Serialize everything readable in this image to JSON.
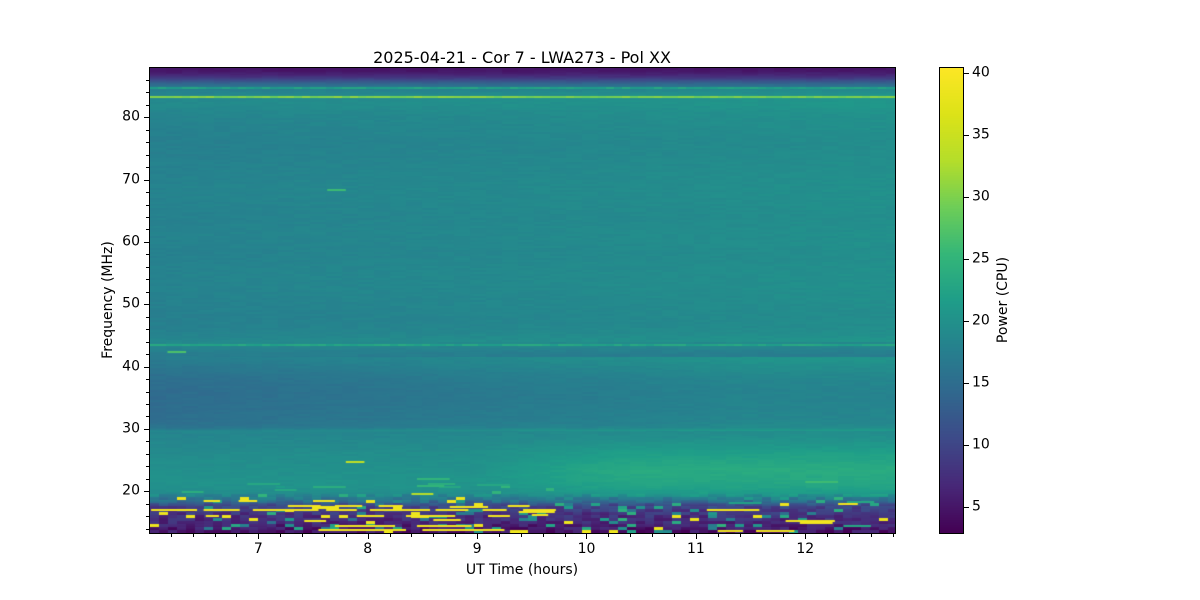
{
  "figure_title": "2025-04-21 - Cor 7 - LWA273 - Pol XX",
  "title_parts": {
    "date": "2025-04-21",
    "instrument": "Cor 7",
    "station": "LWA273",
    "polarization": "Pol XX"
  },
  "chart_data": {
    "type": "heatmap",
    "title": "2025-04-21 - Cor 7 - LWA273 - Pol XX",
    "xlabel": "UT Time (hours)",
    "ylabel": "Frequency (MHz)",
    "colorbar_label": "Power (CPU)",
    "colormap": "viridis",
    "grid": false,
    "x_range": [
      6.01,
      12.82
    ],
    "y_range": [
      13.3,
      87.9
    ],
    "color_range": [
      2.9,
      40.4
    ],
    "x_ticks": [
      7,
      8,
      9,
      10,
      11,
      12
    ],
    "x_minor_step": 0.2,
    "y_ticks": [
      20,
      30,
      40,
      50,
      60,
      70,
      80
    ],
    "y_minor_step": 2,
    "colorbar_ticks": [
      5,
      10,
      15,
      20,
      25,
      30,
      35,
      40
    ],
    "colormap_stops": [
      [
        0.0,
        "#440154"
      ],
      [
        0.1,
        "#482878"
      ],
      [
        0.2,
        "#3e4a89"
      ],
      [
        0.3,
        "#31688e"
      ],
      [
        0.4,
        "#26828e"
      ],
      [
        0.5,
        "#1f9e89"
      ],
      [
        0.6,
        "#35b779"
      ],
      [
        0.7,
        "#6ece58"
      ],
      [
        0.8,
        "#b5de2b"
      ],
      [
        0.9,
        "#dde318"
      ],
      [
        1.0,
        "#fde725"
      ]
    ],
    "background_profile": [
      [
        13.3,
        4.8
      ],
      [
        13.9,
        5.2
      ],
      [
        14.4,
        6.2
      ],
      [
        15.0,
        7.0
      ],
      [
        15.6,
        7.4
      ],
      [
        16.2,
        8.0
      ],
      [
        16.8,
        8.9
      ],
      [
        17.4,
        9.8
      ],
      [
        17.8,
        11.0
      ],
      [
        18.2,
        14.0
      ],
      [
        18.6,
        16.5
      ],
      [
        19.2,
        18.0
      ],
      [
        19.7,
        19.2
      ],
      [
        20.5,
        19.8
      ],
      [
        21.5,
        20.0
      ],
      [
        22.5,
        19.8
      ],
      [
        23.5,
        19.6
      ],
      [
        24.5,
        19.4
      ],
      [
        25.5,
        19.3
      ],
      [
        26.5,
        19.0
      ],
      [
        27.5,
        18.7
      ],
      [
        28.5,
        18.4
      ],
      [
        29.2,
        18.2
      ],
      [
        29.6,
        18.4
      ],
      [
        30.2,
        15.8
      ],
      [
        31,
        15.2
      ],
      [
        32,
        15.0
      ],
      [
        33,
        14.9
      ],
      [
        34,
        14.8
      ],
      [
        35,
        14.7
      ],
      [
        36,
        14.7
      ],
      [
        37,
        14.9
      ],
      [
        38,
        15.1
      ],
      [
        39,
        15.6
      ],
      [
        40,
        16.2
      ],
      [
        41,
        16.8
      ],
      [
        42,
        17.3
      ],
      [
        43,
        18.2
      ],
      [
        43.8,
        18.8
      ],
      [
        44.6,
        18.3
      ],
      [
        45.5,
        17.8
      ],
      [
        46.5,
        17.6
      ],
      [
        48,
        17.5
      ],
      [
        50,
        17.7
      ],
      [
        52,
        17.9
      ],
      [
        54,
        18.0
      ],
      [
        56,
        17.9
      ],
      [
        58,
        17.7
      ],
      [
        60,
        17.9
      ],
      [
        62,
        17.9
      ],
      [
        64,
        17.7
      ],
      [
        66,
        17.9
      ],
      [
        68,
        18.0
      ],
      [
        70,
        17.9
      ],
      [
        72,
        17.8
      ],
      [
        74,
        17.6
      ],
      [
        76,
        17.5
      ],
      [
        78,
        17.8
      ],
      [
        80,
        18.1
      ],
      [
        81,
        18.4
      ],
      [
        82,
        18.9
      ],
      [
        83,
        18.7
      ],
      [
        83.6,
        18.3
      ],
      [
        84.2,
        17.6
      ],
      [
        84.8,
        16.4
      ],
      [
        85.3,
        14.5
      ],
      [
        85.8,
        11.5
      ],
      [
        86.3,
        8.5
      ],
      [
        86.8,
        6.4
      ],
      [
        87.3,
        5.2
      ],
      [
        87.9,
        4.6
      ]
    ],
    "enhancements": [
      {
        "f_min": 19.0,
        "f_max": 29.6,
        "f_peak": 23.5,
        "f_halfwidth": 6.5,
        "t_start": 8.9,
        "t_full": 10.3,
        "max_boost": 3.2
      },
      {
        "f_min": 29.7,
        "f_max": 41.5,
        "t_start": 6.0,
        "t_full": 9.8,
        "max_boost": 2.4
      },
      {
        "f_min": 29.7,
        "f_max": 41.5,
        "t_start": 10.0,
        "t_full": 11.5,
        "max_boost": 1.0
      },
      {
        "f_min": 44.0,
        "f_max": 84.6,
        "t_start": 6.0,
        "t_full": 12.6,
        "max_boost": 1.8
      },
      {
        "f_min": 19.0,
        "f_max": 29.6,
        "t_start": 6.0,
        "t_full": 12.0,
        "max_boost": 0.8
      }
    ],
    "horizontal_lines": [
      {
        "f": 83.2,
        "power": 30,
        "note": "bright narrowband line near 83 MHz"
      },
      {
        "f": 84.7,
        "power": 22,
        "note": "faint line near 85 MHz"
      },
      {
        "f": 43.5,
        "power": 22.5,
        "note": "faint line near 43.5 MHz"
      }
    ],
    "features": [
      [
        6.02,
        17.0,
        0.42,
        39
      ],
      [
        6.5,
        17.05,
        0.33,
        39
      ],
      [
        6.95,
        17.0,
        0.6,
        39
      ],
      [
        7.62,
        17.0,
        0.28,
        39
      ],
      [
        8.02,
        17.05,
        0.55,
        39
      ],
      [
        8.62,
        17.0,
        0.3,
        39
      ],
      [
        9.05,
        17.0,
        0.22,
        39
      ],
      [
        9.42,
        17.05,
        0.3,
        39
      ],
      [
        7.27,
        17.6,
        0.3,
        39
      ],
      [
        7.7,
        17.65,
        0.25,
        39
      ],
      [
        8.1,
        17.6,
        0.22,
        39
      ],
      [
        8.75,
        17.55,
        0.35,
        39
      ],
      [
        9.28,
        17.6,
        0.2,
        39
      ],
      [
        6.5,
        18.5,
        0.15,
        39
      ],
      [
        6.82,
        18.45,
        0.17,
        39
      ],
      [
        7.5,
        18.5,
        0.2,
        39
      ],
      [
        6.52,
        16.1,
        0.12,
        39
      ],
      [
        7.9,
        16.1,
        0.25,
        39
      ],
      [
        8.35,
        16.05,
        0.45,
        39
      ],
      [
        9.1,
        16.1,
        0.2,
        39
      ],
      [
        9.5,
        16.15,
        0.15,
        39
      ],
      [
        7.42,
        15.3,
        0.2,
        39
      ],
      [
        8.6,
        15.35,
        0.25,
        39
      ],
      [
        7.7,
        14.4,
        0.55,
        39
      ],
      [
        8.45,
        14.45,
        0.5,
        39
      ],
      [
        7.55,
        13.8,
        0.8,
        39
      ],
      [
        8.5,
        13.85,
        0.75,
        39
      ],
      [
        11.2,
        13.6,
        0.23,
        39
      ],
      [
        11.55,
        13.65,
        0.35,
        39
      ],
      [
        9.38,
        16.6,
        0.33,
        39
      ],
      [
        11.1,
        17.0,
        0.48,
        39
      ],
      [
        11.82,
        15.2,
        0.45,
        39
      ],
      [
        12.3,
        17.9,
        0.18,
        39
      ],
      [
        11.95,
        14.9,
        0.3,
        39
      ],
      [
        6.3,
        19.9,
        0.2,
        24
      ],
      [
        6.9,
        21.2,
        0.3,
        23
      ],
      [
        7.15,
        20.2,
        0.2,
        23
      ],
      [
        7.5,
        20.7,
        0.3,
        24
      ],
      [
        8.45,
        21.9,
        0.3,
        25
      ],
      [
        8.55,
        21.2,
        0.25,
        24
      ],
      [
        8.65,
        20.6,
        0.2,
        23
      ],
      [
        9.0,
        21.0,
        0.3,
        23
      ],
      [
        12.0,
        21.5,
        0.3,
        26
      ],
      [
        11.3,
        18.1,
        0.3,
        22
      ],
      [
        12.38,
        18.3,
        0.25,
        23
      ],
      [
        12.35,
        14.4,
        0.25,
        23
      ],
      [
        7.63,
        68.4,
        0.17,
        26
      ],
      [
        6.17,
        42.3,
        0.17,
        27
      ],
      [
        7.8,
        24.7,
        0.17,
        34
      ],
      [
        8.45,
        20.9,
        0.25,
        25
      ],
      [
        8.4,
        19.6,
        0.2,
        33
      ]
    ],
    "rfi_region": {
      "f_max": 19.6,
      "f_mid_max": 20.9,
      "t_quiet": 9.7,
      "quiet_factor": 0.4,
      "noise_seed": 7
    }
  }
}
